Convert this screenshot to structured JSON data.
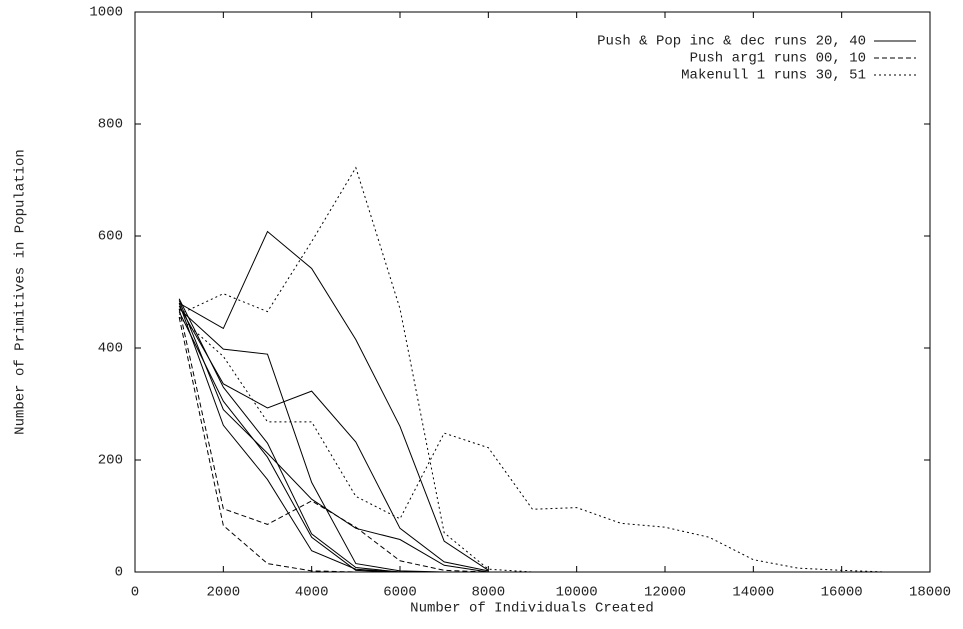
{
  "chart_data": {
    "type": "line",
    "xlabel": "Number of Individuals Created",
    "ylabel": "Number of Primitives in Population",
    "x": [
      1000,
      2000,
      3000,
      4000,
      5000,
      6000,
      7000,
      8000,
      9000,
      10000,
      11000,
      12000,
      13000,
      14000,
      15000,
      16000,
      17000
    ],
    "xlim": [
      0,
      18000
    ],
    "xticks": [
      0,
      2000,
      4000,
      6000,
      8000,
      10000,
      12000,
      14000,
      16000,
      18000
    ],
    "ylim": [
      0,
      1000
    ],
    "yticks": [
      0,
      200,
      400,
      600,
      800,
      1000
    ],
    "legend": "upper right",
    "series": [
      {
        "name": "Push & Pop inc & dec runs 20, 40",
        "color": "#000000",
        "dash": "none",
        "lines": [
          [
            480,
            435,
            608,
            542,
            415,
            260,
            55,
            3,
            null,
            null,
            null,
            null,
            null,
            null,
            null,
            null,
            null
          ],
          [
            470,
            398,
            389,
            160,
            15,
            2,
            0,
            null,
            null,
            null,
            null,
            null,
            null,
            null,
            null,
            null,
            null
          ],
          [
            475,
            336,
            293,
            323,
            232,
            78,
            18,
            2,
            null,
            null,
            null,
            null,
            null,
            null,
            null,
            null,
            null
          ],
          [
            485,
            290,
            212,
            130,
            78,
            58,
            12,
            0,
            null,
            null,
            null,
            null,
            null,
            null,
            null,
            null,
            null
          ],
          [
            480,
            262,
            165,
            38,
            5,
            0,
            null,
            null,
            null,
            null,
            null,
            null,
            null,
            null,
            null,
            null,
            null
          ],
          [
            465,
            305,
            205,
            62,
            3,
            0,
            null,
            null,
            null,
            null,
            null,
            null,
            null,
            null,
            null,
            null,
            null
          ],
          [
            488,
            330,
            230,
            68,
            8,
            0,
            null,
            null,
            null,
            null,
            null,
            null,
            null,
            null,
            null,
            null,
            null
          ]
        ]
      },
      {
        "name": "Push arg1 runs 00, 10",
        "color": "#000000",
        "dash": "5,3",
        "lines": [
          [
            470,
            113,
            85,
            127,
            80,
            20,
            3,
            0,
            null,
            null,
            null,
            null,
            null,
            null,
            null,
            null,
            null
          ],
          [
            455,
            83,
            15,
            2,
            0,
            null,
            null,
            null,
            null,
            null,
            null,
            null,
            null,
            null,
            null,
            null,
            null
          ]
        ]
      },
      {
        "name": "Makenull 1 runs 30, 51",
        "color": "#000000",
        "dash": "2,3",
        "lines": [
          [
            460,
            497,
            465,
            590,
            722,
            470,
            70,
            5,
            0,
            null,
            null,
            null,
            null,
            null,
            null,
            null,
            null
          ],
          [
            455,
            385,
            268,
            268,
            135,
            95,
            248,
            222,
            112,
            115,
            87,
            80,
            62,
            22,
            7,
            3,
            0
          ]
        ]
      }
    ]
  }
}
